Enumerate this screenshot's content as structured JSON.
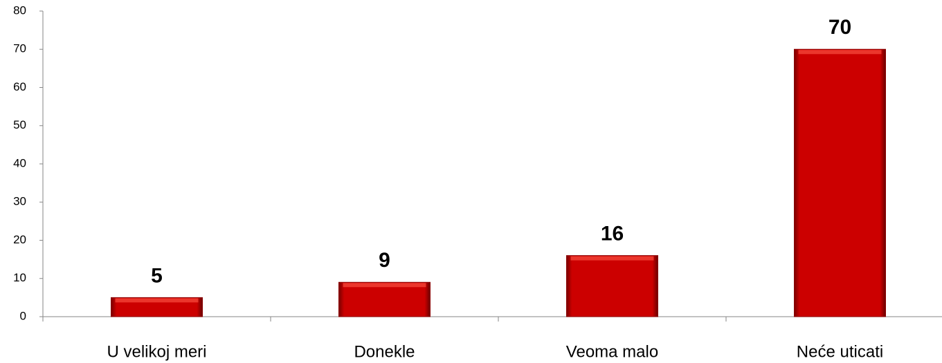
{
  "chart_data": {
    "type": "bar",
    "categories": [
      "U velikoj meri",
      "Donekle",
      "Veoma malo",
      "Neće uticati"
    ],
    "values": [
      5,
      9,
      16,
      70
    ],
    "color": "#cc0000",
    "ylim": [
      0,
      80
    ],
    "yticks": [
      0,
      10,
      20,
      30,
      40,
      50,
      60,
      70,
      80
    ],
    "grid": false
  }
}
